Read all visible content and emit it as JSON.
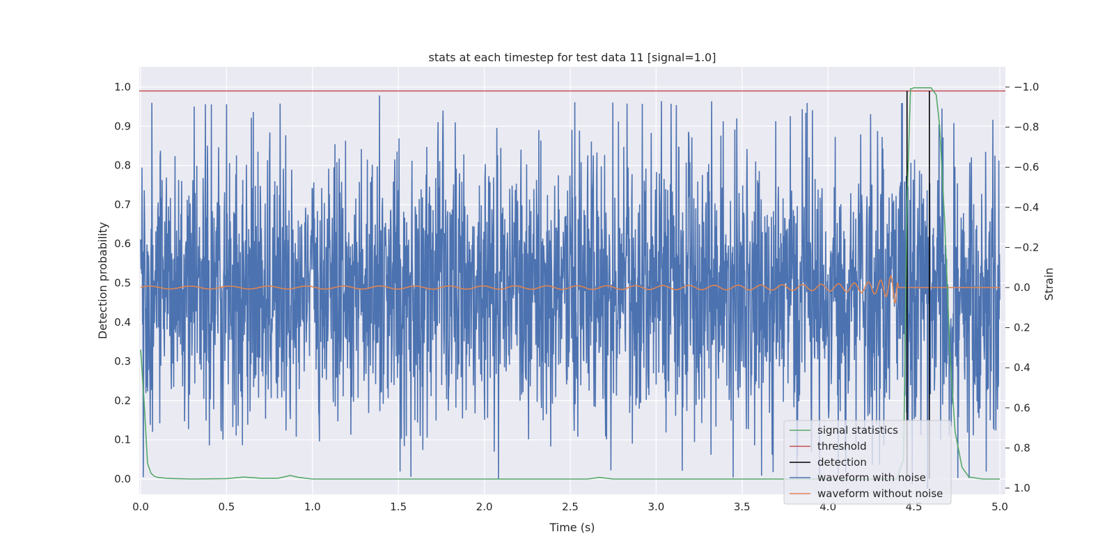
{
  "chart_data": {
    "type": "line",
    "title": "stats at each timestep for test data 11 [signal=1.0]",
    "xlabel": "Time (s)",
    "ylabel": "Detection probability",
    "ylabel_right": "Strain",
    "xlim": [
      0.0,
      5.05
    ],
    "ylim": [
      -0.045,
      1.045
    ],
    "ylim_right": [
      -1.05,
      1.08
    ],
    "xticks": [
      "0.0",
      "0.5",
      "1.0",
      "1.5",
      "2.0",
      "2.5",
      "3.0",
      "3.5",
      "4.0",
      "4.5",
      "5.0"
    ],
    "yticks": [
      "0.0",
      "0.1",
      "0.2",
      "0.3",
      "0.4",
      "0.5",
      "0.6",
      "0.7",
      "0.8",
      "0.9",
      "1.0"
    ],
    "yticks_right": [
      "−1.0",
      "−0.8",
      "−0.6",
      "−0.4",
      "−0.2",
      "0.0",
      "0.2",
      "0.4",
      "0.6",
      "0.8",
      "1.0"
    ],
    "grid": true,
    "legend_position": "lower-right",
    "colors": {
      "signal_statistics": "#55a868",
      "threshold": "#c44e52",
      "detection": "#000000",
      "waveform_with_noise": "#4c72b0",
      "waveform_without_noise": "#dd8452",
      "background": "#eaeaf2"
    },
    "legend": [
      "signal statistics",
      "threshold",
      "detection",
      "waveform with noise",
      "waveform without noise"
    ],
    "threshold": 0.99,
    "detections_x": [
      4.46,
      4.59
    ],
    "signal_statistics": {
      "x": [
        0.0,
        0.02,
        0.04,
        0.06,
        0.08,
        0.1,
        0.15,
        0.2,
        0.3,
        0.5,
        0.6,
        0.7,
        0.8,
        0.87,
        0.92,
        1.0,
        1.5,
        2.0,
        2.6,
        2.67,
        2.75,
        3.0,
        4.0,
        4.4,
        4.44,
        4.46,
        4.48,
        4.5,
        4.6,
        4.63,
        4.65,
        4.68,
        4.71,
        4.74,
        4.78,
        4.82,
        4.9,
        5.0
      ],
      "y": [
        0.33,
        0.2,
        0.04,
        0.015,
        0.007,
        0.004,
        0.002,
        0.001,
        0.0,
        0.001,
        0.005,
        0.002,
        0.002,
        0.009,
        0.004,
        0.0,
        0.0,
        0.0,
        0.0,
        0.004,
        0.0,
        0.0,
        0.0,
        0.0,
        0.05,
        0.7,
        0.995,
        0.998,
        0.998,
        0.98,
        0.9,
        0.65,
        0.32,
        0.12,
        0.03,
        0.005,
        0.0,
        0.0
      ]
    },
    "waveform_with_noise": {
      "x_range": [
        0.0,
        5.0
      ],
      "strain_range": [
        -0.95,
        1.0
      ],
      "noise_amplitude": 0.35,
      "extremes": [
        {
          "x": 0.4,
          "y": 0.78
        },
        {
          "x": 1.39,
          "y": -0.95
        },
        {
          "x": 1.76,
          "y": -0.88
        },
        {
          "x": 4.58,
          "y": 1.0
        },
        {
          "x": 4.49,
          "y": 0.98
        },
        {
          "x": 4.1,
          "y": 0.8
        }
      ]
    },
    "waveform_without_noise": {
      "type": "chirp",
      "x_range": [
        0.0,
        5.0
      ],
      "merger_x": 4.4,
      "peak_strain": 0.33,
      "min_strain": -0.37
    }
  }
}
